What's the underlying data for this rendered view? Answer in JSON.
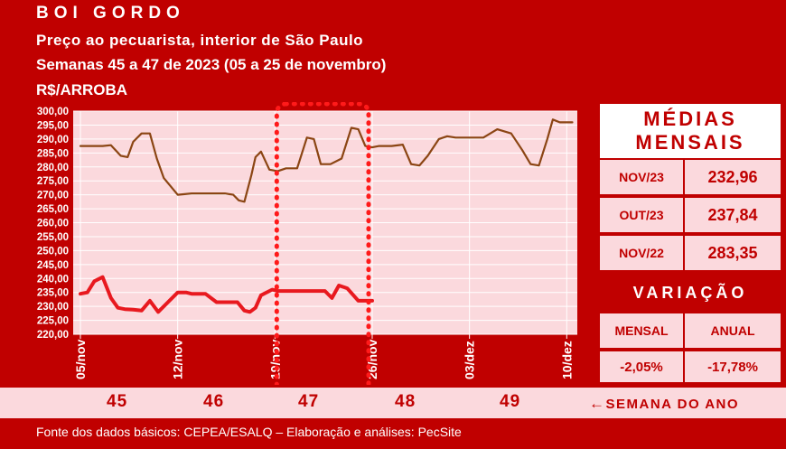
{
  "header": {
    "title": "BOI GORDO",
    "subtitle": "Preço ao pecuarista, interior de São Paulo",
    "period": "Semanas 45 a 47 de 2023 (05 a 25 de novembro)",
    "unit": "R$/ARROBA"
  },
  "colors": {
    "brand_red": "#c00000",
    "pink_bg": "#fbd9dd",
    "brown_series": "#8b4513",
    "red_series": "#e8191f"
  },
  "chart_data": {
    "type": "line",
    "ylim": [
      220,
      300
    ],
    "y_ticks": [
      "300,00",
      "295,00",
      "290,00",
      "285,00",
      "280,00",
      "275,00",
      "270,00",
      "265,00",
      "260,00",
      "255,00",
      "250,00",
      "245,00",
      "240,00",
      "235,00",
      "230,00",
      "225,00",
      "220,00"
    ],
    "x_tick_labels": [
      "05/nov",
      "12/nov",
      "19/nov",
      "26/nov",
      "03/dez",
      "10/dez"
    ],
    "x_tick_days": [
      0,
      7,
      14,
      21,
      28,
      35
    ],
    "xlim": [
      0,
      35.5
    ],
    "grid": true,
    "highlight_week": "19/nov a 25/nov",
    "series": [
      {
        "color": "brown",
        "x": [
          0,
          0.8,
          1.6,
          2.2,
          2.9,
          3.4,
          3.8,
          4.4,
          5,
          5.5,
          6,
          7,
          8,
          8.8,
          9.5,
          10.4,
          11,
          11.4,
          11.8,
          12.3,
          12.6,
          13,
          13.6,
          14.2,
          14.8,
          15.6,
          16.3,
          16.8,
          17.3,
          18,
          18.8,
          19.5,
          20,
          20.5,
          21,
          21.5,
          22.4,
          23.2,
          23.8,
          24.4,
          25,
          25.8,
          26.4,
          27,
          28,
          29,
          30,
          31,
          31.8,
          32.4,
          33,
          33.6,
          34,
          34.5,
          35,
          35.4
        ],
        "values": [
          287.5,
          287.5,
          287.5,
          287.8,
          284,
          283.5,
          289,
          292,
          292,
          283,
          276,
          270,
          270.5,
          270.5,
          270.5,
          270.5,
          270,
          268,
          267.5,
          277,
          283.5,
          285.5,
          279,
          278.5,
          279.5,
          279.5,
          290.5,
          290,
          281,
          281,
          283,
          294,
          293.5,
          287.5,
          287,
          287.5,
          287.5,
          288,
          281,
          280.5,
          284,
          290,
          291,
          290.5,
          290.5,
          290.5,
          293.5,
          292,
          286,
          281,
          280.5,
          290,
          297,
          296,
          296,
          296
        ]
      },
      {
        "color": "red",
        "x": [
          0,
          0.5,
          1,
          1.6,
          2.2,
          2.7,
          3.2,
          3.8,
          4.4,
          5,
          5.6,
          6.2,
          7,
          7.6,
          8,
          8.4,
          9,
          9.8,
          10.6,
          11.3,
          11.8,
          12.2,
          12.6,
          13,
          13.8,
          14.2,
          14.8,
          15.4,
          16,
          16.8,
          17.6,
          18.1,
          18.6,
          19.2,
          20,
          20.6,
          21
        ],
        "values": [
          234.5,
          235,
          239,
          240.5,
          233,
          229.5,
          229,
          228.8,
          228.5,
          232,
          228,
          231,
          235,
          235,
          234.5,
          234.5,
          234.5,
          231.5,
          231.5,
          231.5,
          228.5,
          228,
          229.5,
          234,
          236,
          235.5,
          235.5,
          235.5,
          235.5,
          235.5,
          235.5,
          233,
          237.5,
          236.5,
          232,
          232,
          232
        ]
      }
    ]
  },
  "medias": {
    "title_line1": "MÉDIAS",
    "title_line2": "MENSAIS",
    "rows": [
      {
        "label": "NOV/23",
        "value": "232,96"
      },
      {
        "label": "OUT/23",
        "value": "237,84"
      },
      {
        "label": "NOV/22",
        "value": "283,35"
      }
    ]
  },
  "variacao": {
    "title": "VARIAÇÃO",
    "col1_label": "MENSAL",
    "col2_label": "ANUAL",
    "col1_value": "-2,05%",
    "col2_value": "-17,78%"
  },
  "weeks": {
    "numbers": [
      "45",
      "46",
      "47",
      "48",
      "49"
    ],
    "label": "SEMANA DO ANO",
    "arrow": "←"
  },
  "footer": "Fonte dos dados básicos: CEPEA/ESALQ – Elaboração e análises: PecSite"
}
